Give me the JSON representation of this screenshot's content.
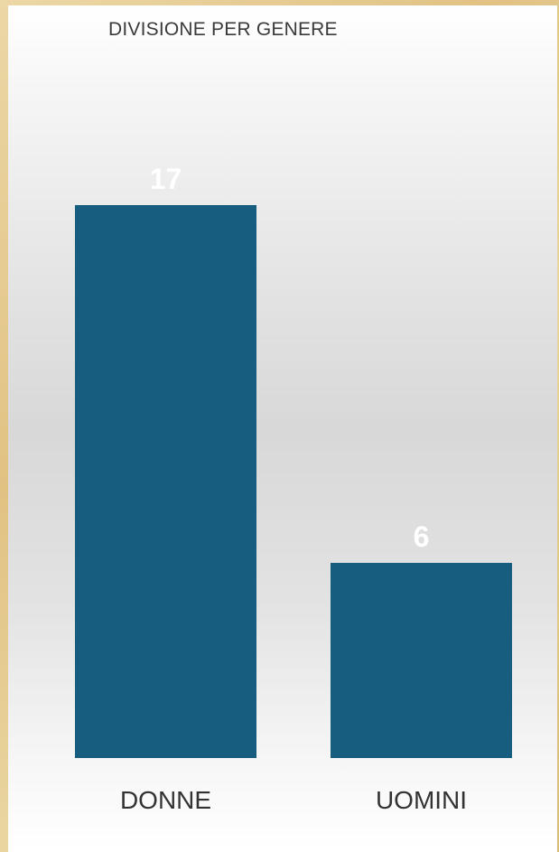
{
  "chart_data": {
    "type": "bar",
    "title": "DIVISIONE PER GENERE",
    "categories": [
      "DONNE",
      "UOMINI"
    ],
    "values": [
      17,
      6
    ],
    "xlabel": "",
    "ylabel": "",
    "ylim": [
      0,
      17
    ],
    "grid": false,
    "data_labels": [
      "17",
      "6"
    ],
    "colors": {
      "bar": "#175d80",
      "data_label": "#ffffff",
      "category_label": "#333333"
    }
  }
}
